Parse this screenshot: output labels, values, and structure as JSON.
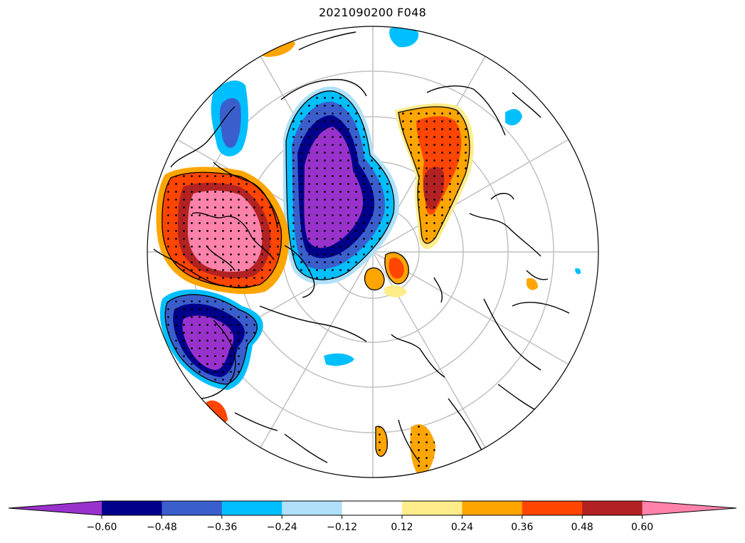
{
  "title": "2021090200 F048",
  "colorbar": {
    "ticks": [
      "−0.60",
      "−0.48",
      "−0.36",
      "−0.24",
      "−0.12",
      "0.12",
      "0.24",
      "0.36",
      "0.48",
      "0.60"
    ],
    "colors": [
      "#9932cc",
      "#00008b",
      "#3a5fcd",
      "#00bfff",
      "#b0e0fa",
      "#ffffff",
      "#ffec8b",
      "#ffa500",
      "#ff4500",
      "#b22222",
      "#ff82ab"
    ],
    "extend": "both"
  },
  "map": {
    "projection": "north-polar-stereographic",
    "graticule": true,
    "stippling": "significance dots"
  }
}
